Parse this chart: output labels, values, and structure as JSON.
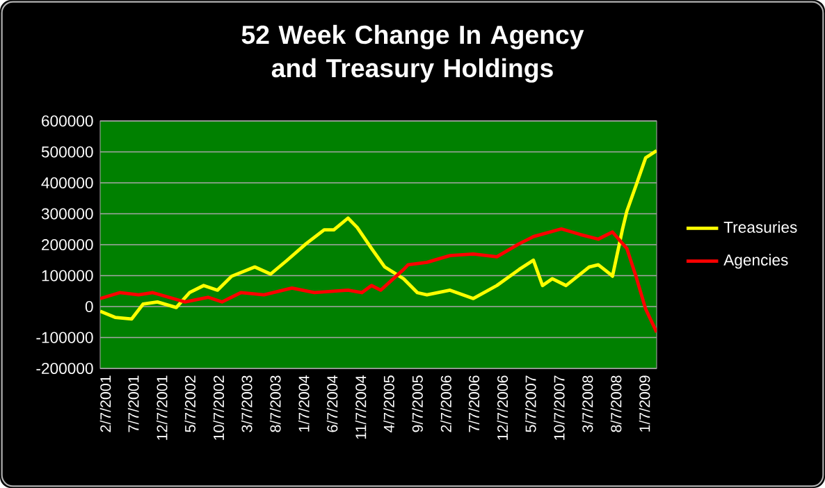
{
  "chart_data": {
    "type": "line",
    "title": "52 Week Change In Agency and Treasury Holdings",
    "xlim": [
      "2001-01-10",
      "2009-03-13"
    ],
    "xticks": [
      {
        "value": "2001-02-07",
        "label": "2/7/2001"
      },
      {
        "value": "2001-07-07",
        "label": "7/7/2001"
      },
      {
        "value": "2001-12-07",
        "label": "12/7/2001"
      },
      {
        "value": "2002-05-07",
        "label": "5/7/2002"
      },
      {
        "value": "2002-10-07",
        "label": "10/7/2002"
      },
      {
        "value": "2003-03-07",
        "label": "3/7/2003"
      },
      {
        "value": "2003-08-07",
        "label": "8/7/2003"
      },
      {
        "value": "2004-01-07",
        "label": "1/7/2004"
      },
      {
        "value": "2004-06-07",
        "label": "6/7/2004"
      },
      {
        "value": "2004-11-07",
        "label": "11/7/2004"
      },
      {
        "value": "2005-04-07",
        "label": "4/7/2005"
      },
      {
        "value": "2005-09-07",
        "label": "9/7/2005"
      },
      {
        "value": "2006-02-07",
        "label": "2/7/2006"
      },
      {
        "value": "2006-07-07",
        "label": "7/7/2006"
      },
      {
        "value": "2006-12-07",
        "label": "12/7/2006"
      },
      {
        "value": "2007-05-07",
        "label": "5/7/2007"
      },
      {
        "value": "2007-10-07",
        "label": "10/7/2007"
      },
      {
        "value": "2008-03-07",
        "label": "3/7/2008"
      },
      {
        "value": "2008-08-07",
        "label": "8/7/2008"
      },
      {
        "value": "2009-01-07",
        "label": "1/7/2009"
      }
    ],
    "ylim": [
      -200000,
      600000
    ],
    "yticks": [
      -200000,
      -100000,
      0,
      100000,
      200000,
      300000,
      400000,
      500000,
      600000
    ],
    "grid": "y",
    "legend": "right",
    "marker": "none",
    "line_style": "solid",
    "series": [
      {
        "name": "Treasuries",
        "color": "#ffff00",
        "x": [
          "2001-01-10",
          "2001-03-31",
          "2001-06-28",
          "2001-08-28",
          "2001-11-13",
          "2002-02-22",
          "2002-05-04",
          "2002-07-19",
          "2002-10-01",
          "2002-12-16",
          "2003-04-19",
          "2003-07-13",
          "2003-10-10",
          "2004-01-19",
          "2004-04-25",
          "2004-06-16",
          "2004-08-31",
          "2004-10-19",
          "2005-01-04",
          "2005-03-16",
          "2005-06-25",
          "2005-09-07",
          "2005-10-28",
          "2006-03-01",
          "2006-07-04",
          "2006-11-07",
          "2007-03-07",
          "2007-05-22",
          "2007-07-10",
          "2007-08-31",
          "2007-11-13",
          "2008-03-16",
          "2008-05-04",
          "2008-07-07",
          "2008-07-19",
          "2008-09-10",
          "2008-10-04",
          "2008-11-22",
          "2009-01-13",
          "2009-03-13"
        ],
        "values": [
          -15000,
          -35000,
          -40000,
          8000,
          15000,
          -3000,
          45000,
          68000,
          53000,
          98000,
          128000,
          105000,
          150000,
          203000,
          248000,
          248000,
          286000,
          256000,
          188000,
          128000,
          90000,
          45000,
          38000,
          53000,
          26000,
          68000,
          120000,
          150000,
          68000,
          90000,
          68000,
          128000,
          135000,
          105000,
          98000,
          248000,
          308000,
          391000,
          481000,
          504000
        ]
      },
      {
        "name": "Agencies",
        "color": "#ff0000",
        "x": [
          "2001-01-10",
          "2001-04-25",
          "2001-08-04",
          "2001-10-19",
          "2002-04-10",
          "2002-08-13",
          "2002-10-25",
          "2003-02-03",
          "2003-06-07",
          "2003-11-04",
          "2004-03-04",
          "2004-08-31",
          "2004-11-13",
          "2005-01-04",
          "2005-02-22",
          "2005-06-25",
          "2005-07-19",
          "2005-10-28",
          "2006-03-01",
          "2006-07-04",
          "2006-11-07",
          "2007-03-07",
          "2007-05-22",
          "2007-10-19",
          "2008-01-28",
          "2008-05-04",
          "2008-07-19",
          "2008-10-04",
          "2008-11-22",
          "2009-01-13",
          "2009-03-13"
        ],
        "values": [
          26000,
          45000,
          38000,
          45000,
          15000,
          30000,
          15000,
          45000,
          38000,
          60000,
          45000,
          53000,
          45000,
          68000,
          53000,
          120000,
          135000,
          143000,
          165000,
          170000,
          161000,
          203000,
          226000,
          251000,
          233000,
          218000,
          241000,
          188000,
          98000,
          -8000,
          -83000
        ]
      }
    ]
  }
}
